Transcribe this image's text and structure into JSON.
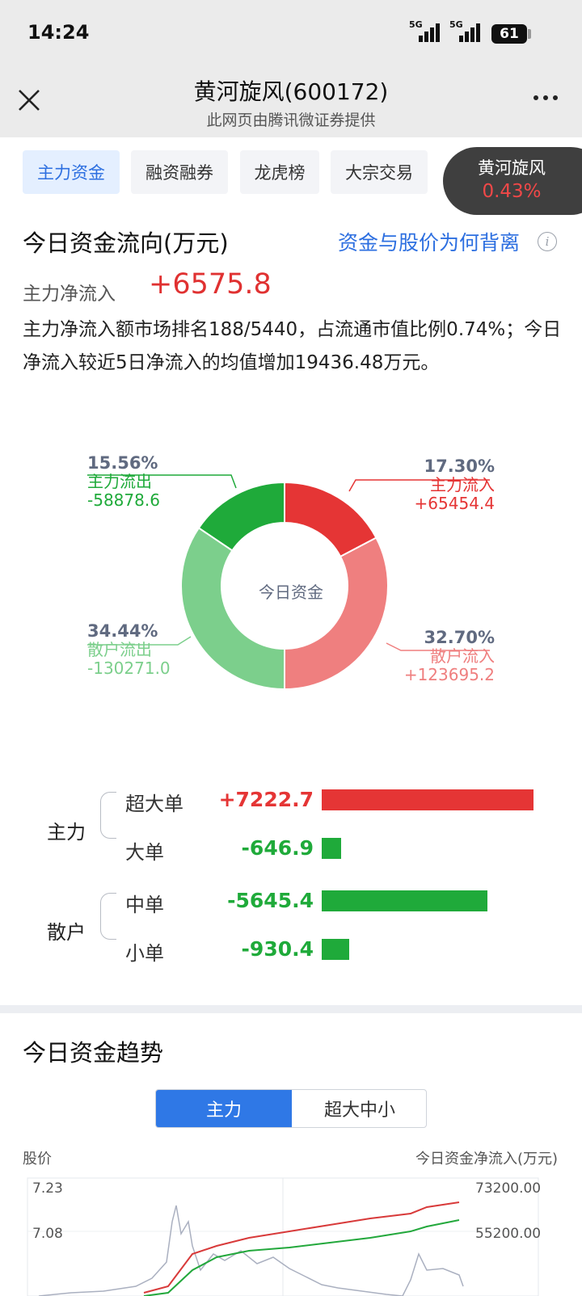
{
  "status_bar": {
    "time": "14:24",
    "network1": "5G",
    "network2": "5G",
    "battery": "61"
  },
  "title_bar": {
    "title": "黄河旋风(600172)",
    "subtitle": "此网页由腾讯微证券提供"
  },
  "tabs": [
    "主力资金",
    "融资融券",
    "龙虎榜",
    "大宗交易"
  ],
  "stock_badge": {
    "name": "黄河旋风",
    "change": "0.43%"
  },
  "flow": {
    "title": "今日资金流向(万元)",
    "link": "资金与股价为何背离",
    "net_label": "主力净流入",
    "net_value": "+6575.8",
    "summary": "主力净流入额市场排名188/5440，占流通市值比例0.74%；今日净流入较近5日净流入的均值增加19436.48万元。"
  },
  "donut": {
    "center": "今日资金",
    "segments": [
      {
        "pct": "17.30%",
        "label": "主力流入",
        "value": "+65454.4",
        "share": 17.3,
        "color": "#e53535"
      },
      {
        "pct": "32.70%",
        "label": "散户流入",
        "value": "+123695.2",
        "share": 32.7,
        "color": "#ef7f7f"
      },
      {
        "pct": "34.44%",
        "label": "散户流出",
        "value": "-130271.0",
        "share": 34.44,
        "color": "#7ccf8c"
      },
      {
        "pct": "15.56%",
        "label": "主力流出",
        "value": "-58878.6",
        "share": 15.56,
        "color": "#1faa3a"
      }
    ]
  },
  "breakdown": {
    "groups": [
      {
        "name": "主力",
        "rows": [
          {
            "label": "超大单",
            "value": "+7222.7",
            "amount": 7222.7
          },
          {
            "label": "大单",
            "value": "-646.9",
            "amount": -646.9
          }
        ]
      },
      {
        "name": "散户",
        "rows": [
          {
            "label": "中单",
            "value": "-5645.4",
            "amount": -5645.4
          },
          {
            "label": "小单",
            "value": "-930.4",
            "amount": -930.4
          }
        ]
      }
    ],
    "pos_color": "#e53535",
    "neg_color": "#1faa3a"
  },
  "trend": {
    "title": "今日资金趋势",
    "segments": [
      "主力",
      "超大中小"
    ],
    "left_axis_label": "股价",
    "right_axis_label": "今日资金净流入(万元)"
  },
  "chart_data": {
    "type": "line",
    "left_ticks": [
      "7.23",
      "7.08"
    ],
    "right_ticks": [
      "73200.00",
      "55200.00"
    ],
    "grid": true,
    "series": []
  }
}
